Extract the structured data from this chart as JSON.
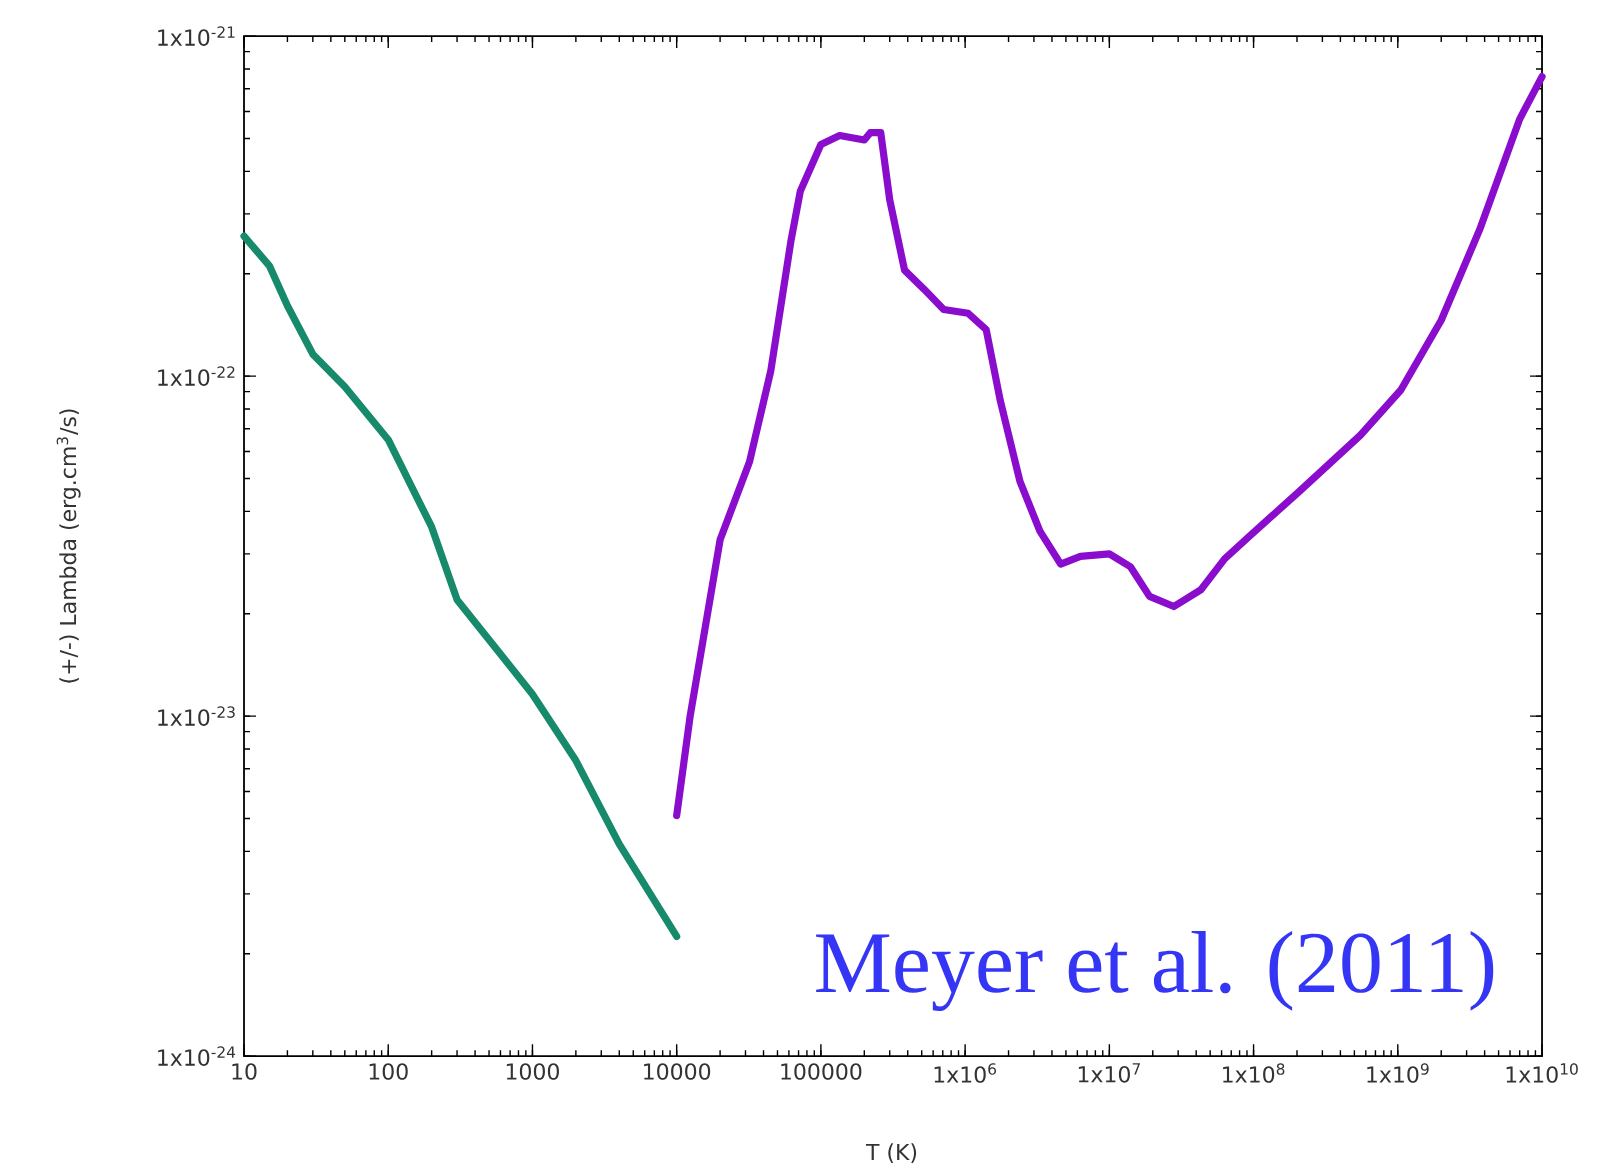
{
  "chart_data": {
    "type": "line",
    "xlabel": "T (K)",
    "ylabel": "(+/-) Lambda (erg.cm$^{3}$/s)",
    "log": "xy",
    "xlim": [
      10,
      10000000000
    ],
    "ylim": [
      1e-24,
      1e-21
    ],
    "xticks": [
      10,
      100,
      1000,
      10000,
      100000,
      {
        "value": 1000000,
        "label": "1x10$^{6}$"
      },
      {
        "value": 10000000,
        "label": "1x10$^{7}$"
      },
      {
        "value": 100000000,
        "label": "1x10$^{8}$"
      },
      {
        "value": 1000000000,
        "label": "1x10$^{9}$"
      },
      {
        "value": 10000000000,
        "label": "1x10$^{10}$"
      }
    ],
    "yticks": [
      {
        "value": 1e-24,
        "label": "1x10$^{-24}$"
      },
      {
        "value": 1e-23,
        "label": "1x10$^{-23}$"
      },
      {
        "value": 1e-22,
        "label": "1x10$^{-22}$"
      },
      {
        "value": 1e-21,
        "label": "1x10$^{-21}$"
      }
    ],
    "annotations": [
      "Meyer et al. (2011)"
    ],
    "series": [
      {
        "color": "#168a6a",
        "x": [
          10,
          15,
          20,
          30,
          50,
          100,
          200,
          300,
          1000,
          2000,
          4000,
          10000
        ],
        "values": [
          2.58e-22,
          2.11e-22,
          1.61e-22,
          1.16e-22,
          9.3e-23,
          6.5e-23,
          3.6e-23,
          2.2e-23,
          1.16e-23,
          7.4e-24,
          4.2e-24,
          2.25e-24
        ]
      },
      {
        "color": "#8a0ccc",
        "x": [
          10000,
          12400,
          20000,
          32000,
          45000,
          62000,
          72000,
          100000,
          135000,
          200000,
          220000,
          260000,
          300000,
          380000,
          520000,
          710000,
          1050000,
          1400000,
          1750000,
          2400000,
          3300000,
          4600000,
          6300000,
          10000000,
          14000000,
          19000000,
          28000000,
          43000000,
          63000000,
          95000000,
          210000000,
          550000000,
          1050000000,
          2000000000,
          3700000000,
          7000000000,
          10000000000
        ],
        "values": [
          5.1e-24,
          1e-23,
          3.3e-23,
          5.6e-23,
          1.04e-22,
          2.5e-22,
          3.5e-22,
          4.8e-22,
          5.1e-22,
          4.95e-22,
          5.2e-22,
          5.2e-22,
          3.3e-22,
          2.05e-22,
          1.8e-22,
          1.57e-22,
          1.53e-22,
          1.37e-22,
          8.5e-23,
          4.9e-23,
          3.5e-23,
          2.8e-23,
          2.95e-23,
          3e-23,
          2.75e-23,
          2.25e-23,
          2.1e-23,
          2.35e-23,
          2.9e-23,
          3.4e-23,
          4.6e-23,
          6.7e-23,
          9.1e-23,
          1.46e-22,
          2.7e-22,
          5.7e-22,
          7.6e-22
        ]
      }
    ]
  }
}
